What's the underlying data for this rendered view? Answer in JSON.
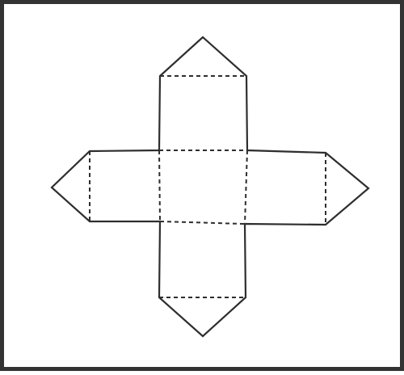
{
  "diagram": {
    "kind": "net",
    "faces": [
      "square",
      "rectangle",
      "rectangle",
      "rectangle",
      "rectangle",
      "triangle",
      "triangle",
      "triangle",
      "triangle"
    ],
    "stroke_color": "#2e2e2e",
    "frame_color": "#333333",
    "background_color": "#ffffff",
    "line_styles": {
      "cut": "solid",
      "fold": "dashed"
    }
  }
}
